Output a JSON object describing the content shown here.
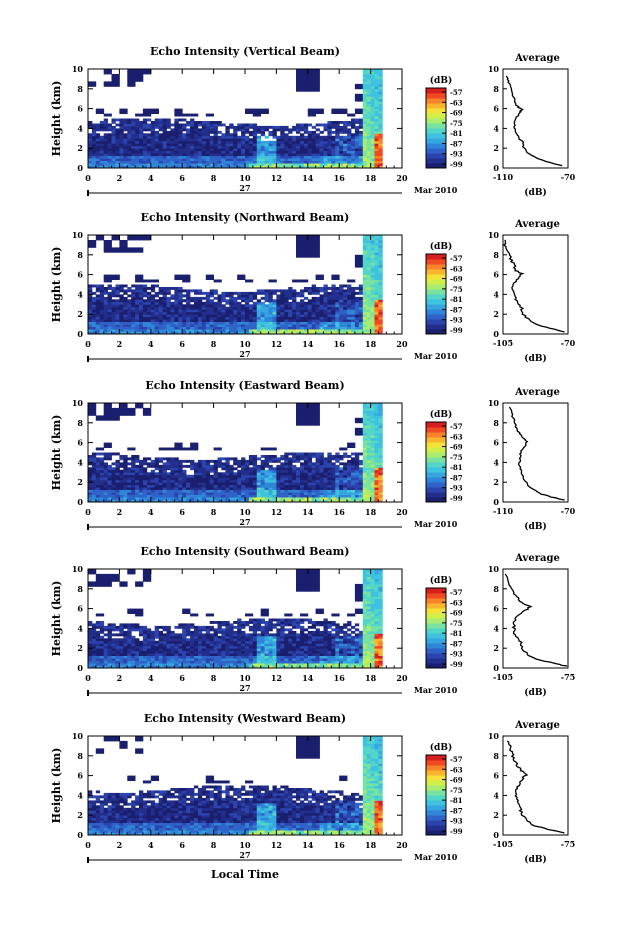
{
  "figure": {
    "xlabel": "Local Time",
    "date_label": "Mar 2010",
    "day_label": "27",
    "colorbar_unit": "(dB)",
    "avg_title": "Average",
    "avg_xlabel": "(dB)",
    "ylabel": "Height (km)"
  },
  "colormap": [
    "#1a1f6e",
    "#232f8c",
    "#2c44ad",
    "#2f63c8",
    "#2f86d8",
    "#35a6e0",
    "#3fc2e0",
    "#52d6c8",
    "#78e3a0",
    "#a8ec70",
    "#d2ee4a",
    "#f4e23a",
    "#f9b52e",
    "#f7842a",
    "#ef4a22",
    "#d81e1e"
  ],
  "chart_data": [
    {
      "type": "heatmap",
      "title": "Echo Intensity (Vertical Beam)",
      "xlim": [
        0,
        20
      ],
      "ylim": [
        0,
        10
      ],
      "xticks": [
        0,
        2,
        4,
        6,
        8,
        10,
        12,
        14,
        16,
        18,
        20
      ],
      "yticks": [
        0,
        2,
        4,
        6,
        8,
        10
      ],
      "colorbar_ticks": [
        "-57",
        "-63",
        "-69",
        "-75",
        "-81",
        "-87",
        "-93",
        "-99"
      ],
      "average": {
        "xlim": [
          -110,
          -70
        ],
        "xticklabels": [
          "-110",
          "-70"
        ],
        "yticks": [
          0,
          2,
          4,
          6,
          8,
          10
        ],
        "profile": [
          [
            -73,
            0.2
          ],
          [
            -80,
            0.5
          ],
          [
            -88,
            0.9
          ],
          [
            -94,
            1.4
          ],
          [
            -97,
            2.0
          ],
          [
            -98,
            2.6
          ],
          [
            -101,
            3.2
          ],
          [
            -103,
            3.8
          ],
          [
            -103,
            4.3
          ],
          [
            -102,
            5.0
          ],
          [
            -100,
            5.6
          ],
          [
            -98,
            5.9
          ],
          [
            -101,
            6.2
          ],
          [
            -103,
            6.8
          ],
          [
            -104,
            7.5
          ],
          [
            -105,
            8.2
          ],
          [
            -107,
            8.8
          ],
          [
            -108,
            9.3
          ]
        ]
      }
    },
    {
      "type": "heatmap",
      "title": "Echo Intensity (Northward Beam)",
      "xlim": [
        0,
        20
      ],
      "ylim": [
        0,
        10
      ],
      "xticks": [
        0,
        2,
        4,
        6,
        8,
        10,
        12,
        14,
        16,
        18,
        20
      ],
      "yticks": [
        0,
        2,
        4,
        6,
        8,
        10
      ],
      "colorbar_ticks": [
        "-57",
        "-63",
        "-69",
        "-75",
        "-81",
        "-87",
        "-93",
        "-99"
      ],
      "average": {
        "xlim": [
          -105,
          -70
        ],
        "xticklabels": [
          "-105",
          "-70"
        ],
        "yticks": [
          0,
          2,
          4,
          6,
          8,
          10
        ],
        "profile": [
          [
            -72,
            0.2
          ],
          [
            -78,
            0.5
          ],
          [
            -86,
            0.9
          ],
          [
            -91,
            1.4
          ],
          [
            -94,
            2.0
          ],
          [
            -95,
            2.6
          ],
          [
            -97,
            3.2
          ],
          [
            -99,
            3.8
          ],
          [
            -100,
            4.4
          ],
          [
            -99,
            5.0
          ],
          [
            -97,
            5.6
          ],
          [
            -95,
            6.1
          ],
          [
            -98,
            6.4
          ],
          [
            -99,
            7.0
          ],
          [
            -101,
            7.6
          ],
          [
            -102,
            8.3
          ],
          [
            -104,
            9.0
          ],
          [
            -104,
            9.5
          ]
        ]
      }
    },
    {
      "type": "heatmap",
      "title": "Echo Intensity (Eastward Beam)",
      "xlim": [
        0,
        20
      ],
      "ylim": [
        0,
        10
      ],
      "xticks": [
        0,
        2,
        4,
        6,
        8,
        10,
        12,
        14,
        16,
        18,
        20
      ],
      "yticks": [
        0,
        2,
        4,
        6,
        8,
        10
      ],
      "colorbar_ticks": [
        "-57",
        "-63",
        "-69",
        "-75",
        "-81",
        "-87",
        "-93",
        "-99"
      ],
      "average": {
        "xlim": [
          -110,
          -70
        ],
        "xticklabels": [
          "-110",
          "-70"
        ],
        "yticks": [
          0,
          2,
          4,
          6,
          8,
          10
        ],
        "profile": [
          [
            -72,
            0.2
          ],
          [
            -80,
            0.5
          ],
          [
            -88,
            0.9
          ],
          [
            -93,
            1.4
          ],
          [
            -96,
            2.0
          ],
          [
            -98,
            2.6
          ],
          [
            -99,
            3.2
          ],
          [
            -100,
            3.8
          ],
          [
            -100,
            4.4
          ],
          [
            -99,
            5.0
          ],
          [
            -97,
            5.6
          ],
          [
            -95,
            6.1
          ],
          [
            -98,
            6.5
          ],
          [
            -100,
            7.0
          ],
          [
            -102,
            7.6
          ],
          [
            -103,
            8.3
          ],
          [
            -105,
            9.0
          ],
          [
            -106,
            9.6
          ]
        ]
      }
    },
    {
      "type": "heatmap",
      "title": "Echo Intensity (Southward Beam)",
      "xlim": [
        0,
        20
      ],
      "ylim": [
        0,
        10
      ],
      "xticks": [
        0,
        2,
        4,
        6,
        8,
        10,
        12,
        14,
        16,
        18,
        20
      ],
      "yticks": [
        0,
        2,
        4,
        6,
        8,
        10
      ],
      "colorbar_ticks": [
        "-57",
        "-63",
        "-69",
        "-75",
        "-81",
        "-87",
        "-93",
        "-99"
      ],
      "average": {
        "xlim": [
          -105,
          -75
        ],
        "xticklabels": [
          "-105",
          "-75"
        ],
        "yticks": [
          0,
          2,
          4,
          6,
          8,
          10
        ],
        "profile": [
          [
            -76,
            0.2
          ],
          [
            -82,
            0.5
          ],
          [
            -89,
            0.9
          ],
          [
            -94,
            1.4
          ],
          [
            -96,
            2.0
          ],
          [
            -97,
            2.6
          ],
          [
            -99,
            3.2
          ],
          [
            -100,
            3.8
          ],
          [
            -100,
            4.4
          ],
          [
            -99,
            5.0
          ],
          [
            -96,
            5.7
          ],
          [
            -92,
            6.2
          ],
          [
            -96,
            6.6
          ],
          [
            -99,
            7.2
          ],
          [
            -101,
            7.8
          ],
          [
            -102,
            8.4
          ],
          [
            -103,
            9.0
          ],
          [
            -104,
            9.5
          ]
        ]
      }
    },
    {
      "type": "heatmap",
      "title": "Echo Intensity (Westward Beam)",
      "xlim": [
        0,
        20
      ],
      "ylim": [
        0,
        10
      ],
      "xticks": [
        0,
        2,
        4,
        6,
        8,
        10,
        12,
        14,
        16,
        18,
        20
      ],
      "yticks": [
        0,
        2,
        4,
        6,
        8,
        10
      ],
      "colorbar_ticks": [
        "-57",
        "-63",
        "-69",
        "-75",
        "-81",
        "-87",
        "-93",
        "-99"
      ],
      "average": {
        "xlim": [
          -105,
          -75
        ],
        "xticklabels": [
          "-105",
          "-75"
        ],
        "yticks": [
          0,
          2,
          4,
          6,
          8,
          10
        ],
        "profile": [
          [
            -77,
            0.2
          ],
          [
            -83,
            0.5
          ],
          [
            -90,
            0.9
          ],
          [
            -94,
            1.4
          ],
          [
            -96,
            2.0
          ],
          [
            -97,
            2.6
          ],
          [
            -98,
            3.2
          ],
          [
            -99,
            3.8
          ],
          [
            -99,
            4.4
          ],
          [
            -98,
            5.0
          ],
          [
            -96,
            5.7
          ],
          [
            -94,
            6.2
          ],
          [
            -97,
            6.6
          ],
          [
            -99,
            7.2
          ],
          [
            -100,
            7.8
          ],
          [
            -101,
            8.4
          ],
          [
            -102,
            9.0
          ],
          [
            -103,
            9.5
          ]
        ]
      }
    }
  ]
}
